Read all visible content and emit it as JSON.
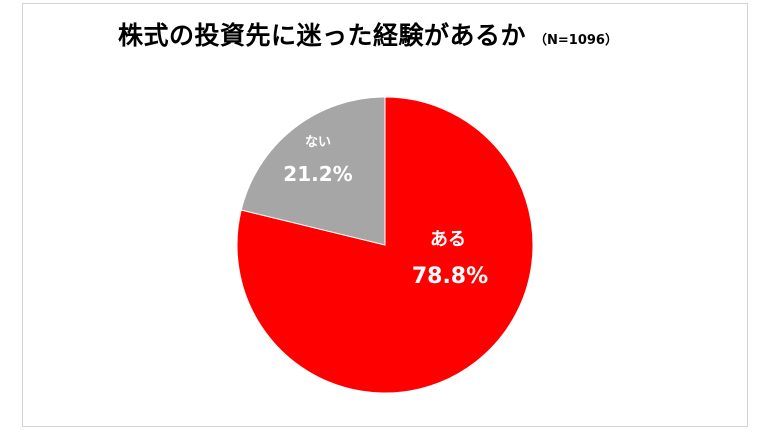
{
  "chart_data": {
    "type": "pie",
    "title": "株式の投資先に迷った経験があるか",
    "subtitle": "（N=1096）",
    "slices": [
      {
        "label": "ある",
        "value": 78.8,
        "value_label": "78.8%",
        "color": "#ff0000"
      },
      {
        "label": "ない",
        "value": 21.2,
        "value_label": "21.2%",
        "color": "#a6a6a6"
      }
    ],
    "start_angle_deg": 0,
    "direction": "clockwise",
    "legend": "none"
  }
}
